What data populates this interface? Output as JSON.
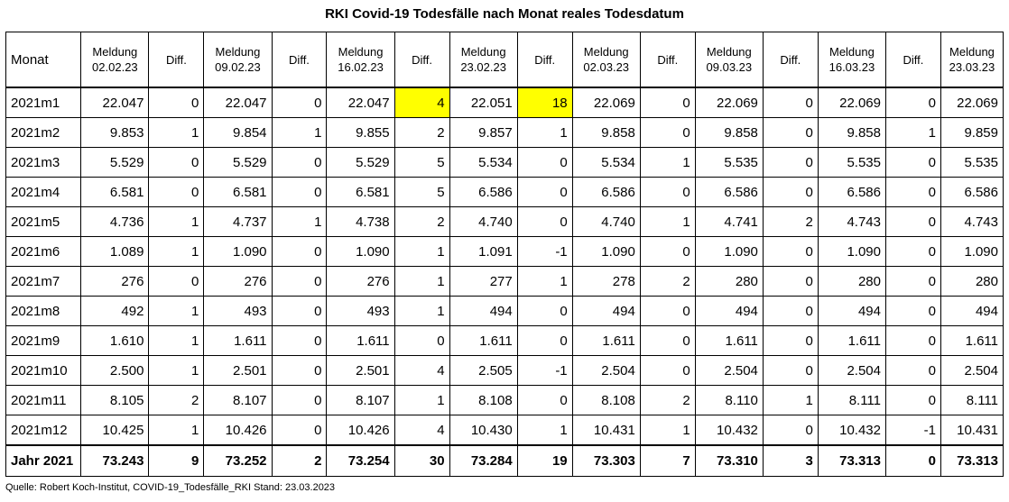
{
  "title": "RKI Covid-19 Todesfälle nach Monat reales Todesdatum",
  "header": {
    "monat": "Monat",
    "meldung_label": "Meldung",
    "diff_label": "Diff.",
    "dates": [
      "02.02.23",
      "09.02.23",
      "16.02.23",
      "23.02.23",
      "02.03.23",
      "09.03.23",
      "16.03.23",
      "23.03.23"
    ]
  },
  "rows": [
    {
      "month": "2021m1",
      "values": [
        "22.047",
        "0",
        "22.047",
        "0",
        "22.047",
        "4",
        "22.051",
        "18",
        "22.069",
        "0",
        "22.069",
        "0",
        "22.069",
        "0",
        "22.069"
      ]
    },
    {
      "month": "2021m2",
      "values": [
        "9.853",
        "1",
        "9.854",
        "1",
        "9.855",
        "2",
        "9.857",
        "1",
        "9.858",
        "0",
        "9.858",
        "0",
        "9.858",
        "1",
        "9.859"
      ]
    },
    {
      "month": "2021m3",
      "values": [
        "5.529",
        "0",
        "5.529",
        "0",
        "5.529",
        "5",
        "5.534",
        "0",
        "5.534",
        "1",
        "5.535",
        "0",
        "5.535",
        "0",
        "5.535"
      ]
    },
    {
      "month": "2021m4",
      "values": [
        "6.581",
        "0",
        "6.581",
        "0",
        "6.581",
        "5",
        "6.586",
        "0",
        "6.586",
        "0",
        "6.586",
        "0",
        "6.586",
        "0",
        "6.586"
      ]
    },
    {
      "month": "2021m5",
      "values": [
        "4.736",
        "1",
        "4.737",
        "1",
        "4.738",
        "2",
        "4.740",
        "0",
        "4.740",
        "1",
        "4.741",
        "2",
        "4.743",
        "0",
        "4.743"
      ]
    },
    {
      "month": "2021m6",
      "values": [
        "1.089",
        "1",
        "1.090",
        "0",
        "1.090",
        "1",
        "1.091",
        "-1",
        "1.090",
        "0",
        "1.090",
        "0",
        "1.090",
        "0",
        "1.090"
      ]
    },
    {
      "month": "2021m7",
      "values": [
        "276",
        "0",
        "276",
        "0",
        "276",
        "1",
        "277",
        "1",
        "278",
        "2",
        "280",
        "0",
        "280",
        "0",
        "280"
      ]
    },
    {
      "month": "2021m8",
      "values": [
        "492",
        "1",
        "493",
        "0",
        "493",
        "1",
        "494",
        "0",
        "494",
        "0",
        "494",
        "0",
        "494",
        "0",
        "494"
      ]
    },
    {
      "month": "2021m9",
      "values": [
        "1.610",
        "1",
        "1.611",
        "0",
        "1.611",
        "0",
        "1.611",
        "0",
        "1.611",
        "0",
        "1.611",
        "0",
        "1.611",
        "0",
        "1.611"
      ]
    },
    {
      "month": "2021m10",
      "values": [
        "2.500",
        "1",
        "2.501",
        "0",
        "2.501",
        "4",
        "2.505",
        "-1",
        "2.504",
        "0",
        "2.504",
        "0",
        "2.504",
        "0",
        "2.504"
      ]
    },
    {
      "month": "2021m11",
      "values": [
        "8.105",
        "2",
        "8.107",
        "0",
        "8.107",
        "1",
        "8.108",
        "0",
        "8.108",
        "2",
        "8.110",
        "1",
        "8.111",
        "0",
        "8.111"
      ]
    },
    {
      "month": "2021m12",
      "values": [
        "10.425",
        "1",
        "10.426",
        "0",
        "10.426",
        "4",
        "10.430",
        "1",
        "10.431",
        "1",
        "10.432",
        "0",
        "10.432",
        "-1",
        "10.431"
      ]
    }
  ],
  "total": {
    "month": "Jahr 2021",
    "values": [
      "73.243",
      "9",
      "73.252",
      "2",
      "73.254",
      "30",
      "73.284",
      "19",
      "73.303",
      "7",
      "73.310",
      "3",
      "73.313",
      "0",
      "73.313"
    ]
  },
  "highlight_color": "#ffff00",
  "highlighted_cells": [
    {
      "row": 0,
      "col": 5
    },
    {
      "row": 0,
      "col": 7
    }
  ],
  "source": "Quelle: Robert Koch-Institut, COVID-19_Todesfälle_RKI Stand: 23.03.2023"
}
